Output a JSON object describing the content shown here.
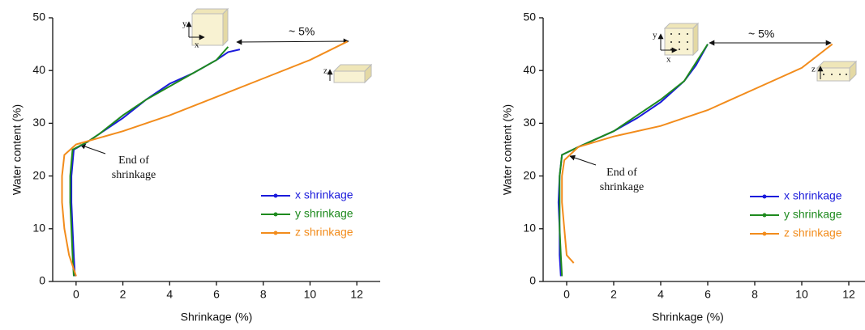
{
  "chart_data": [
    {
      "type": "line",
      "x_label": "Shrinkage (%)",
      "y_label": "Water content (%)",
      "xlim": [
        -1,
        13
      ],
      "ylim": [
        0,
        50
      ],
      "xticks": [
        0,
        2,
        4,
        6,
        8,
        10,
        12
      ],
      "yticks": [
        0,
        10,
        20,
        30,
        40,
        50
      ],
      "legend": "right",
      "annotation": "~ 5%",
      "end_note": [
        "End of",
        "shrinkage"
      ],
      "cube_labels": [
        "y",
        "x",
        "z"
      ],
      "series": [
        {
          "name": "x shrinkage",
          "color": "#1a1adb",
          "x": [
            -0.05,
            -0.1,
            -0.15,
            -0.2,
            -0.2,
            -0.1,
            0.5,
            1,
            2,
            3,
            4,
            5,
            6,
            6.5,
            7
          ],
          "values": [
            1,
            5,
            10,
            15,
            20,
            25,
            26.5,
            28,
            31,
            34.5,
            37.5,
            39.5,
            42,
            43.5,
            44
          ]
        },
        {
          "name": "y shrinkage",
          "color": "#1e8a1e",
          "x": [
            -0.1,
            -0.15,
            -0.2,
            -0.25,
            -0.25,
            -0.15,
            0.5,
            1,
            2,
            3,
            4,
            5,
            6,
            6.5
          ],
          "values": [
            1,
            5,
            10,
            15,
            20,
            25,
            26.5,
            28,
            31.5,
            34.5,
            37,
            39.5,
            42,
            44.5
          ]
        },
        {
          "name": "z shrinkage",
          "color": "#f28c1c",
          "x": [
            0,
            -0.3,
            -0.5,
            -0.6,
            -0.6,
            -0.5,
            0,
            2,
            4,
            6,
            8,
            10,
            11.6
          ],
          "values": [
            1,
            5,
            10,
            15,
            20,
            24,
            26,
            28.5,
            31.5,
            35,
            38.5,
            42,
            45.5
          ]
        }
      ]
    },
    {
      "type": "line",
      "x_label": "Shrinkage (%)",
      "y_label": "Water content (%)",
      "xlim": [
        -1,
        13
      ],
      "ylim": [
        0,
        50
      ],
      "xticks": [
        0,
        2,
        4,
        6,
        8,
        10,
        12
      ],
      "yticks": [
        0,
        10,
        20,
        30,
        40,
        50
      ],
      "legend": "right",
      "annotation": "~ 5%",
      "end_note": [
        "End of",
        "shrinkage"
      ],
      "cube_labels": [
        "y",
        "x",
        "z"
      ],
      "series": [
        {
          "name": "x shrinkage",
          "color": "#1a1adb",
          "x": [
            -0.25,
            -0.3,
            -0.3,
            -0.35,
            -0.3,
            -0.2,
            0.5,
            2,
            3,
            4,
            5,
            5.5,
            6
          ],
          "values": [
            1,
            5,
            10,
            15,
            20,
            24,
            25.5,
            28.5,
            31,
            34,
            38,
            41,
            45
          ]
        },
        {
          "name": "y shrinkage",
          "color": "#1e8a1e",
          "x": [
            -0.2,
            -0.25,
            -0.3,
            -0.3,
            -0.3,
            -0.2,
            0.5,
            2,
            3,
            4,
            5,
            5.5,
            6
          ],
          "values": [
            1,
            5,
            10,
            15,
            20,
            24,
            25.5,
            28.5,
            31.5,
            34.5,
            38,
            41.5,
            45
          ]
        },
        {
          "name": "z shrinkage",
          "color": "#f28c1c",
          "x": [
            0.3,
            0,
            -0.1,
            -0.2,
            -0.2,
            -0.1,
            0.5,
            2,
            4,
            6,
            8,
            10,
            11.3
          ],
          "values": [
            3.5,
            5,
            10,
            15,
            20,
            23,
            25.5,
            27.5,
            29.5,
            32.5,
            36.5,
            40.5,
            45
          ]
        }
      ]
    }
  ]
}
